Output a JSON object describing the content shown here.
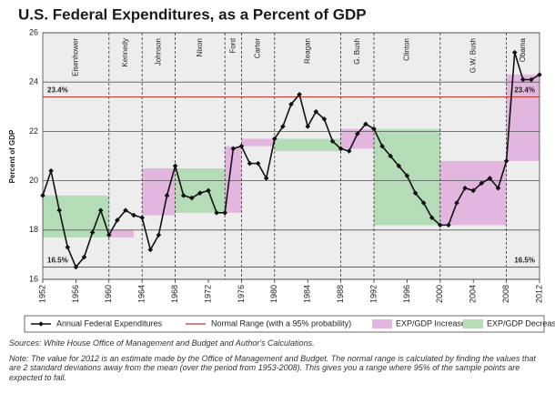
{
  "chart_data": {
    "type": "line",
    "title": "U.S. Federal Expenditures, as a Percent of GDP",
    "y_label": "Percent of GDP",
    "xlim": [
      1952,
      2012
    ],
    "xticks": [
      1952,
      1956,
      1960,
      1964,
      1968,
      1972,
      1976,
      1980,
      1984,
      1988,
      1992,
      1996,
      2000,
      2004,
      2008,
      2012
    ],
    "ylim": [
      16,
      26
    ],
    "yticks": [
      16,
      18,
      20,
      22,
      24,
      26
    ],
    "grid": true,
    "x": [
      1952,
      1953,
      1954,
      1955,
      1956,
      1957,
      1958,
      1959,
      1960,
      1961,
      1962,
      1963,
      1964,
      1965,
      1966,
      1967,
      1968,
      1969,
      1970,
      1971,
      1972,
      1973,
      1974,
      1975,
      1976,
      1977,
      1978,
      1979,
      1980,
      1981,
      1982,
      1983,
      1984,
      1985,
      1986,
      1987,
      1988,
      1989,
      1990,
      1991,
      1992,
      1993,
      1994,
      1995,
      1996,
      1997,
      1998,
      1999,
      2000,
      2001,
      2002,
      2003,
      2004,
      2005,
      2006,
      2007,
      2008,
      2009,
      2010,
      2011,
      2012
    ],
    "series": [
      {
        "name": "Annual Federal Expenditures",
        "color": "#111111",
        "values": [
          19.4,
          20.4,
          18.8,
          17.3,
          16.5,
          16.9,
          17.9,
          18.8,
          17.8,
          18.4,
          18.8,
          18.6,
          18.5,
          17.2,
          17.8,
          19.4,
          20.6,
          19.4,
          19.3,
          19.5,
          19.6,
          18.7,
          18.7,
          21.3,
          21.4,
          20.7,
          20.7,
          20.1,
          21.7,
          22.2,
          23.1,
          23.5,
          22.2,
          22.8,
          22.5,
          21.6,
          21.3,
          21.2,
          21.9,
          22.3,
          22.1,
          21.4,
          21.0,
          20.6,
          20.2,
          19.5,
          19.1,
          18.5,
          18.2,
          18.2,
          19.1,
          19.7,
          19.6,
          19.9,
          20.1,
          19.7,
          20.8,
          25.2,
          24.1,
          24.1,
          24.3
        ]
      }
    ],
    "reference": {
      "name": "Normal Range (with a 95% probability)",
      "color": "#c0392b",
      "values": [
        23.4,
        16.5
      ],
      "value_labels": [
        "23.4%",
        "16.5%"
      ]
    },
    "bands": [
      {
        "name": "EXP/GDP Increase",
        "color": "#e2b6de",
        "periods": [
          {
            "xlim": [
              1960,
              1963
            ],
            "ylim": [
              17.7,
              18.0
            ]
          },
          {
            "xlim": [
              1964,
              1968
            ],
            "ylim": [
              18.6,
              20.5
            ]
          },
          {
            "xlim": [
              1974,
              1976
            ],
            "ylim": [
              18.7,
              21.4
            ]
          },
          {
            "xlim": [
              1976,
              1980
            ],
            "ylim": [
              21.4,
              21.7
            ]
          },
          {
            "xlim": [
              1988,
              1992
            ],
            "ylim": [
              21.3,
              22.1
            ]
          },
          {
            "xlim": [
              2000,
              2008
            ],
            "ylim": [
              18.2,
              20.8
            ]
          },
          {
            "xlim": [
              2008,
              2012
            ],
            "ylim": [
              20.8,
              24.3
            ]
          }
        ]
      },
      {
        "name": "EXP/GDP Decrease",
        "color": "#b4dcb6",
        "periods": [
          {
            "xlim": [
              1952,
              1960
            ],
            "ylim": [
              17.7,
              19.4
            ]
          },
          {
            "xlim": [
              1968,
              1974
            ],
            "ylim": [
              18.7,
              20.5
            ]
          },
          {
            "xlim": [
              1980,
              1988
            ],
            "ylim": [
              21.2,
              21.7
            ]
          },
          {
            "xlim": [
              1992,
              2000
            ],
            "ylim": [
              18.2,
              22.1
            ]
          }
        ]
      }
    ],
    "presidents": {
      "names": [
        "Eisenhower",
        "Kennedy",
        "Johnson",
        "Nixon",
        "Ford",
        "Carter",
        "Reagan",
        "G. Bush",
        "Clinton",
        "G.W. Bush",
        "Obama"
      ],
      "boundaries": [
        1960,
        1964,
        1968,
        1974,
        1976,
        1980,
        1988,
        1992,
        2000,
        2008
      ]
    }
  },
  "sources": "Sources: White House Office of Management and Budget and Author's Calculations.",
  "note": "Note: The value for 2012 is an estimate made by the Office of Management and Budget. The normal range is calculated by finding the values that are 2 standard deviations away from the mean (over the period from 1953-2008). This gives you a range where 95% of the sample points are expected to fall."
}
